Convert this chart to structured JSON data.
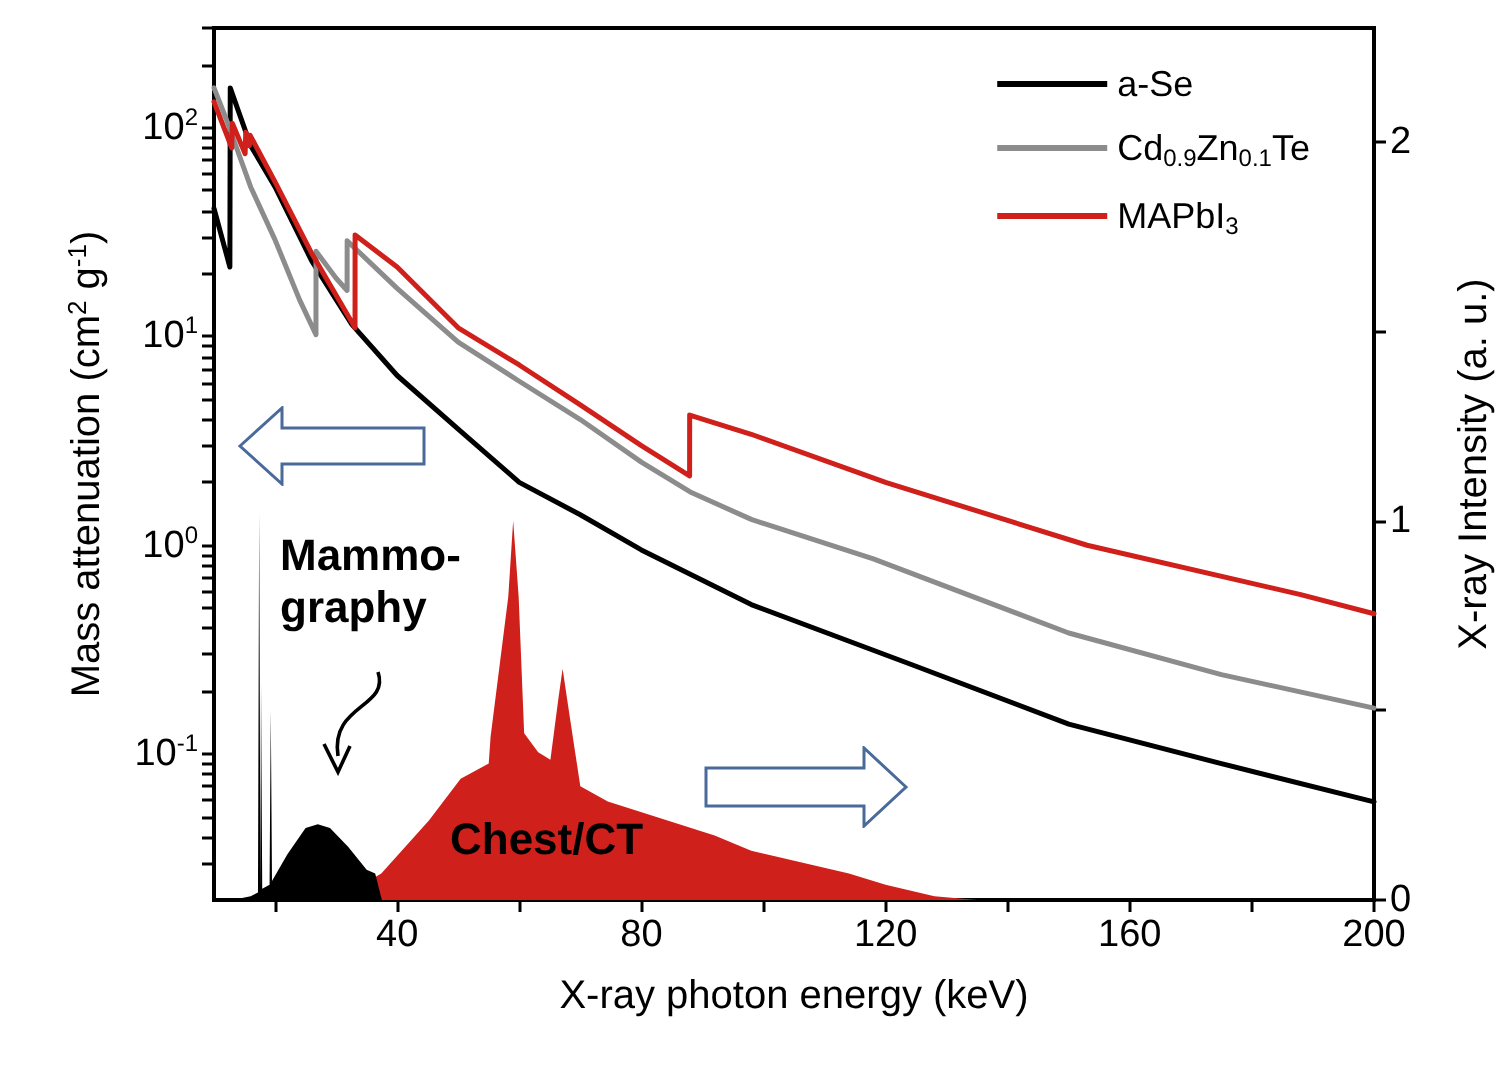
{
  "chart_data": {
    "type": "line",
    "xlabel": "X-ray photon energy (keV)",
    "ylabel": "Mass attenuation (cm$^{2}$ g$^{-1}$)",
    "y2label": "X-ray Intensity (a. u.)",
    "log": "y",
    "legend": "top right",
    "marker": "none",
    "line_style": "solid",
    "xlim": [
      10,
      200
    ],
    "xticks": [
      {
        "value": 20,
        "label": null
      },
      40,
      {
        "value": 60,
        "label": null
      },
      80,
      {
        "value": 100,
        "label": null
      },
      120,
      {
        "value": 140,
        "label": null
      },
      160,
      {
        "value": 180,
        "label": null
      },
      200
    ],
    "ylim": [
      0.02,
      300
    ],
    "yticks": [
      {
        "value": 0.03,
        "label": null
      },
      {
        "value": 0.04,
        "label": null
      },
      {
        "value": 0.05,
        "label": null
      },
      {
        "value": 0.06,
        "label": null
      },
      {
        "value": 0.07,
        "label": null
      },
      {
        "value": 0.08,
        "label": null
      },
      {
        "value": 0.09,
        "label": null
      },
      {
        "value": 0.1,
        "label": "10$^{-1}$"
      },
      {
        "value": 0.2,
        "label": null
      },
      {
        "value": 0.3,
        "label": null
      },
      {
        "value": 0.4,
        "label": null
      },
      {
        "value": 0.5,
        "label": null
      },
      {
        "value": 0.6,
        "label": null
      },
      {
        "value": 0.7,
        "label": null
      },
      {
        "value": 0.8,
        "label": null
      },
      {
        "value": 0.9,
        "label": null
      },
      {
        "value": 1,
        "label": "10$^{0}$"
      },
      {
        "value": 2,
        "label": null
      },
      {
        "value": 3,
        "label": null
      },
      {
        "value": 4,
        "label": null
      },
      {
        "value": 5,
        "label": null
      },
      {
        "value": 6,
        "label": null
      },
      {
        "value": 7,
        "label": null
      },
      {
        "value": 8,
        "label": null
      },
      {
        "value": 9,
        "label": null
      },
      {
        "value": 10,
        "label": "10$^{1}$"
      },
      {
        "value": 20,
        "label": null
      },
      {
        "value": 30,
        "label": null
      },
      {
        "value": 40,
        "label": null
      },
      {
        "value": 50,
        "label": null
      },
      {
        "value": 60,
        "label": null
      },
      {
        "value": 70,
        "label": null
      },
      {
        "value": 80,
        "label": null
      },
      {
        "value": 90,
        "label": null
      },
      {
        "value": 100,
        "label": "10$^{2}$"
      },
      {
        "value": 200,
        "label": null
      },
      {
        "value": 300,
        "label": null
      }
    ],
    "y2lim": [
      0,
      2.3
    ],
    "y2ticks": [
      0,
      {
        "value": 0.5,
        "label": null
      },
      1,
      {
        "value": 1.5,
        "label": null
      },
      2
    ],
    "annotations": [
      "Mammo-\ngraphy",
      "Chest/CT"
    ],
    "series": [
      {
        "type": "area",
        "axis": "y2",
        "color": "#d0201b",
        "x": [
          30,
          37.4,
          45.2,
          50.4,
          55,
          55.3,
          58.2,
          59,
          59.9,
          60.8,
          63.1,
          65.1,
          66.4,
          67.1,
          68.3,
          70,
          74.5,
          92,
          98,
          114,
          120,
          128,
          135
        ],
        "values": [
          0,
          0.07,
          0.21,
          0.32,
          0.36,
          0.43,
          0.8,
          1.0,
          0.8,
          0.44,
          0.39,
          0.37,
          0.53,
          0.61,
          0.48,
          0.3,
          0.26,
          0.17,
          0.13,
          0.07,
          0.04,
          0.01,
          0
        ]
      },
      {
        "type": "area",
        "axis": "y2",
        "color": "#000000",
        "x": [
          13,
          16,
          17.2,
          17.4,
          17.6,
          17.7,
          17.9,
          19.1,
          19.3,
          19.5,
          22,
          25,
          27,
          29,
          32,
          35,
          36.4,
          37.5
        ],
        "values": [
          0,
          0.01,
          0.02,
          1.02,
          0.03,
          0.57,
          0.03,
          0.04,
          0.5,
          0.05,
          0.12,
          0.19,
          0.2,
          0.19,
          0.14,
          0.08,
          0.07,
          0
        ]
      },
      {
        "name": "a-Se",
        "color": "#000000",
        "x": [
          10,
          12.6,
          12.66,
          14,
          16,
          20,
          26,
          32.6,
          40,
          50,
          60,
          70,
          80,
          98,
          124,
          150,
          175,
          200
        ],
        "values": [
          41,
          21.5,
          155,
          120,
          82,
          52,
          23,
          11.4,
          6.5,
          3.6,
          2.0,
          1.4,
          0.95,
          0.52,
          0.27,
          0.139,
          0.09,
          0.059
        ]
      },
      {
        "name": "Cd$_{0.9}$Zn$_{0.1}$Te",
        "color": "#8c8c8c",
        "x": [
          10,
          12,
          16,
          20,
          24,
          26.7,
          26.71,
          30,
          31.8,
          31.81,
          40,
          50,
          60,
          70,
          80,
          88,
          98,
          118,
          150,
          175,
          200
        ],
        "values": [
          155,
          110,
          52,
          29,
          15,
          10.2,
          25.6,
          19,
          16.6,
          28.7,
          17,
          9.4,
          6.1,
          4.0,
          2.5,
          1.8,
          1.33,
          0.86,
          0.38,
          0.24,
          0.166
        ]
      },
      {
        "name": "MAPbI$_{3}$",
        "color": "#d0201b",
        "x": [
          10,
          12.9,
          13.0,
          15.1,
          15.2,
          15.8,
          15.9,
          20,
          26,
          33.1,
          33.11,
          40,
          50,
          60,
          70,
          80,
          87.9,
          87.91,
          98,
          120,
          153,
          188,
          200
        ],
        "values": [
          133,
          80,
          105,
          75,
          95,
          82,
          92,
          55,
          25,
          11.0,
          30.6,
          21.5,
          11,
          7.3,
          4.7,
          3.0,
          2.15,
          4.2,
          3.4,
          2.0,
          1.0,
          0.58,
          0.47
        ]
      }
    ]
  }
}
